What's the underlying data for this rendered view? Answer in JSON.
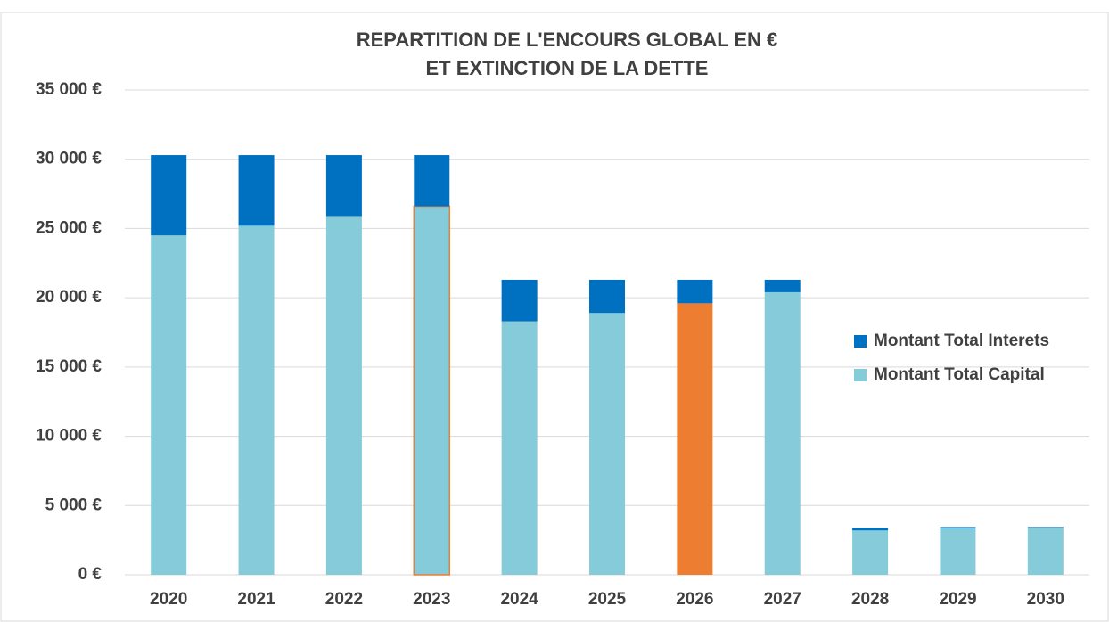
{
  "chart_data": {
    "type": "stacked_bar",
    "title": [
      "REPARTITION DE L'ENCOURS GLOBAL EN €",
      "ET EXTINCTION  DE LA DETTE"
    ],
    "categories": [
      "2020",
      "2021",
      "2022",
      "2023",
      "2024",
      "2025",
      "2026",
      "2027",
      "2028",
      "2029",
      "2030"
    ],
    "series": [
      {
        "name": "Montant Total Capital",
        "color": "#86cbd9",
        "values": [
          24500,
          25200,
          25900,
          26600,
          18300,
          18900,
          19600,
          20400,
          3200,
          3350,
          3400
        ],
        "point_colors": {
          "6": "#ed7d31"
        },
        "point_edges": {
          "3": "#ed7d31"
        }
      },
      {
        "name": "Montant Total Interets",
        "color": "#0070c0",
        "values": [
          5800,
          5100,
          4400,
          3700,
          3000,
          2400,
          1700,
          900,
          200,
          100,
          50
        ]
      }
    ],
    "ylim": [
      0,
      35000
    ],
    "yticks": [
      {
        "value": 0,
        "label": "0 €"
      },
      {
        "value": 5000,
        "label": "5 000 €"
      },
      {
        "value": 10000,
        "label": "10 000 €"
      },
      {
        "value": 15000,
        "label": "15 000 €"
      },
      {
        "value": 20000,
        "label": "20 000 €"
      },
      {
        "value": 25000,
        "label": "25 000 €"
      },
      {
        "value": 30000,
        "label": "30 000 €"
      },
      {
        "value": 35000,
        "label": "35 000 €"
      }
    ],
    "grid": true,
    "legend": "right"
  }
}
